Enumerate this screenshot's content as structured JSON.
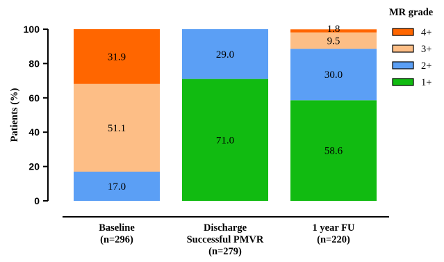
{
  "chart_data": {
    "type": "bar",
    "stacked": true,
    "categories": [
      [
        "Baseline",
        "(n=296)"
      ],
      [
        "Discharge",
        "Successful PMVR",
        "(n=279)"
      ],
      [
        "1 year FU",
        "(n=220)"
      ]
    ],
    "ylabel": "Patients (%)",
    "ylim": [
      0,
      100
    ],
    "yticks": [
      0,
      20,
      40,
      60,
      80,
      100
    ],
    "legend": {
      "title": "MR grade",
      "placement": "top-right"
    },
    "series": [
      {
        "name": "1+",
        "color": "#11BB11",
        "values": [
          0,
          71.0,
          58.6
        ],
        "labels": [
          "",
          "71.0",
          "58.6"
        ]
      },
      {
        "name": "2+",
        "color": "#5B9FF5",
        "values": [
          17.0,
          29.0,
          30.0
        ],
        "labels": [
          "17.0",
          "29.0",
          "30.0"
        ]
      },
      {
        "name": "3+",
        "color": "#FDBE86",
        "values": [
          51.1,
          0,
          9.5
        ],
        "labels": [
          "51.1",
          "",
          "9.5"
        ]
      },
      {
        "name": "4+",
        "color": "#FF6600",
        "values": [
          31.9,
          0,
          1.8
        ],
        "labels": [
          "31.9",
          "",
          "1.8"
        ]
      }
    ],
    "legend_order": [
      "4+",
      "3+",
      "2+",
      "1+"
    ]
  }
}
